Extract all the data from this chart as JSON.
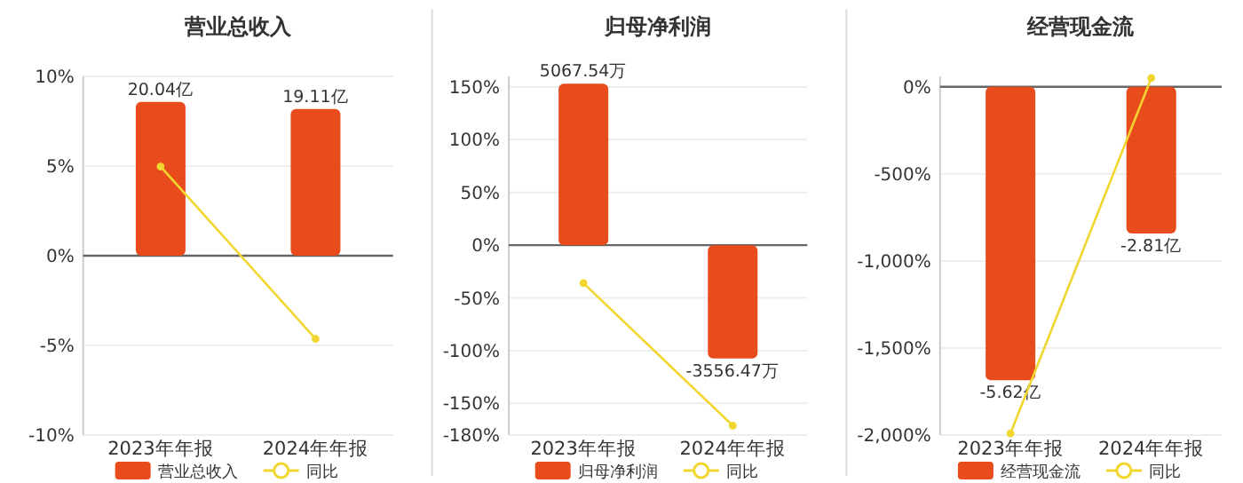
{
  "chart_data": [
    {
      "type": "bar",
      "title": "营业总收入",
      "categories": [
        "2023年年报",
        "2024年年报"
      ],
      "ylim": [
        -10,
        10
      ],
      "yticks": [
        {
          "value": -10,
          "label": "-10%"
        },
        {
          "value": -5,
          "label": "-5%"
        },
        {
          "value": 0,
          "label": "0%"
        },
        {
          "value": 5,
          "label": "5%"
        },
        {
          "value": 10,
          "label": "10%"
        }
      ],
      "y2lim": [
        -23.36,
        23.36
      ],
      "grid": "y",
      "legend": "bottom",
      "series": [
        {
          "name": "营业总收入",
          "color": "#e84b1c",
          "axis": "y2",
          "values": [
            20.04,
            19.11
          ],
          "value_labels": [
            "20.04亿",
            "19.11亿"
          ]
        },
        {
          "name": "同比",
          "type": "line",
          "color": "#f2d630",
          "marker": "circle",
          "values": [
            4.97,
            -4.64
          ]
        }
      ]
    },
    {
      "type": "bar",
      "title": "归母净利润",
      "categories": [
        "2023年年报",
        "2024年年报"
      ],
      "ylim": [
        -180,
        160
      ],
      "yticks": [
        {
          "value": -180,
          "label": "-180%"
        },
        {
          "value": -150,
          "label": "-150%"
        },
        {
          "value": -100,
          "label": "-100%"
        },
        {
          "value": -50,
          "label": "-50%"
        },
        {
          "value": 0,
          "label": "0%"
        },
        {
          "value": 50,
          "label": "50%"
        },
        {
          "value": 100,
          "label": "100%"
        },
        {
          "value": 150,
          "label": "150%"
        }
      ],
      "y2lim": [
        -5960,
        5300
      ],
      "grid": "y",
      "legend": "bottom",
      "series": [
        {
          "name": "归母净利润",
          "color": "#e84b1c",
          "axis": "y2",
          "values": [
            5067.54,
            -3556.47
          ],
          "value_labels": [
            "5067.54万",
            "-3556.47万"
          ]
        },
        {
          "name": "同比",
          "type": "line",
          "color": "#f2d630",
          "marker": "circle",
          "values": [
            -36,
            -171
          ]
        }
      ]
    },
    {
      "type": "bar",
      "title": "经营现金流",
      "categories": [
        "2023年年报",
        "2024年年报"
      ],
      "ylim": [
        -2000,
        60
      ],
      "yticks": [
        {
          "value": -2000,
          "label": "-2,000%"
        },
        {
          "value": -1500,
          "label": "-1,500%"
        },
        {
          "value": -1000,
          "label": "-1,000%"
        },
        {
          "value": -500,
          "label": "-500%"
        },
        {
          "value": 0,
          "label": "0%"
        }
      ],
      "y2lim": [
        -6.67,
        0.2
      ],
      "grid": "y",
      "legend": "bottom",
      "series": [
        {
          "name": "经营现金流",
          "color": "#e84b1c",
          "axis": "y2",
          "values": [
            -5.62,
            -2.81
          ],
          "value_labels": [
            "-5.62亿",
            "-2.81亿"
          ]
        },
        {
          "name": "同比",
          "type": "line",
          "color": "#f2d630",
          "marker": "circle",
          "values": [
            -1990,
            50
          ]
        }
      ]
    }
  ]
}
